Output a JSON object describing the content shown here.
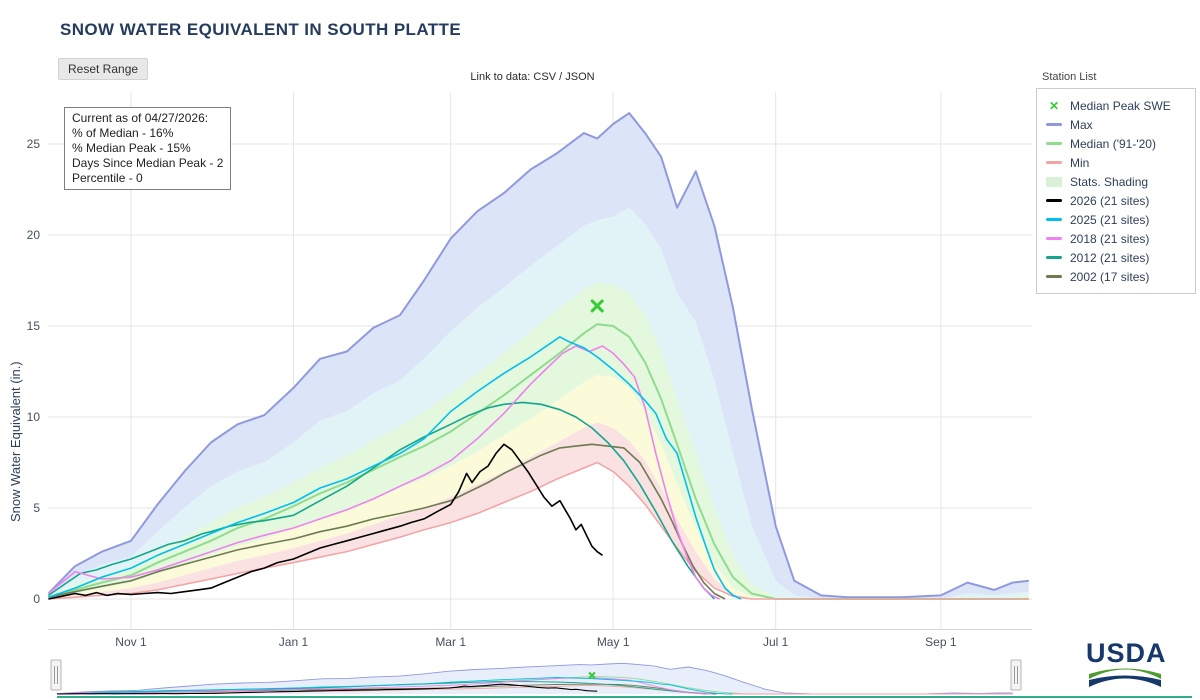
{
  "header": {
    "title": "SNOW WATER EQUIVALENT IN SOUTH PLATTE",
    "reset_button": "Reset Range",
    "data_link": {
      "prefix": "Link to data:",
      "csv": "CSV",
      "separator": "/",
      "json": "JSON"
    }
  },
  "annotation": {
    "lines": [
      "Current as of 04/27/2026:",
      "% of Median - 16%",
      "% Median Peak - 15%",
      "Days Since Median Peak - 2",
      "Percentile - 0"
    ]
  },
  "legend": {
    "station_list_label": "Station List",
    "items": [
      {
        "label": "Median Peak SWE",
        "color": "#33cc33",
        "swatch": "x-marker"
      },
      {
        "label": "Max",
        "color": "#9099e0",
        "swatch": "line"
      },
      {
        "label": "Median ('91-'20)",
        "color": "#8fdc8f",
        "swatch": "line"
      },
      {
        "label": "Min",
        "color": "#f2a3a3",
        "swatch": "line"
      },
      {
        "label": "Stats. Shading",
        "color": "#d9f0d9",
        "swatch": "box"
      },
      {
        "label": "2026 (21 sites)",
        "color": "#000000",
        "swatch": "line"
      },
      {
        "label": "2025 (21 sites)",
        "color": "#00bfee",
        "swatch": "line"
      },
      {
        "label": "2018 (21 sites)",
        "color": "#ee82ee",
        "swatch": "line"
      },
      {
        "label": "2012 (21 sites)",
        "color": "#14a68c",
        "swatch": "line"
      },
      {
        "label": "2002 (17 sites)",
        "color": "#6e7b51",
        "swatch": "line"
      }
    ]
  },
  "footer": {
    "logo_text": "USDA"
  },
  "chart_data": {
    "type": "line",
    "title": "SNOW WATER EQUIVALENT IN SOUTH PLATTE",
    "ylabel": "Snow Water Equivalent (in.)",
    "x_unit": "day of water year (Oct 1 = 0)",
    "xlim": [
      0,
      369
    ],
    "ylim": [
      0,
      27.5
    ],
    "grid": true,
    "legend_position": "right",
    "xticks": [
      {
        "day": 31,
        "label": "Nov 1"
      },
      {
        "day": 92,
        "label": "Jan 1"
      },
      {
        "day": 151,
        "label": "Mar 1"
      },
      {
        "day": 212,
        "label": "May 1"
      },
      {
        "day": 273,
        "label": "Jul 1"
      },
      {
        "day": 335,
        "label": "Sep 1"
      }
    ],
    "yticks": [
      0,
      5,
      10,
      15,
      20,
      25
    ],
    "stat_x": [
      0,
      10,
      20,
      31,
      41,
      51,
      61,
      71,
      81,
      92,
      102,
      112,
      122,
      132,
      141,
      151,
      161,
      171,
      181,
      191,
      201,
      206,
      212,
      218,
      224,
      230,
      236,
      243,
      250,
      257,
      264,
      273,
      280,
      290,
      300,
      320,
      335,
      345,
      355,
      362,
      368
    ],
    "stats": {
      "max": [
        0.3,
        1.8,
        2.6,
        3.2,
        5.2,
        7.0,
        8.6,
        9.6,
        10.1,
        11.6,
        13.2,
        13.6,
        14.9,
        15.6,
        17.5,
        19.8,
        21.3,
        22.3,
        23.6,
        24.5,
        25.6,
        25.3,
        26.1,
        26.7,
        25.6,
        24.3,
        21.5,
        23.5,
        20.5,
        16.0,
        10.5,
        4.0,
        1.0,
        0.2,
        0.1,
        0.1,
        0.2,
        0.9,
        0.5,
        0.9,
        1.0
      ],
      "p90": [
        0.2,
        1.2,
        1.9,
        2.3,
        3.7,
        5.0,
        6.2,
        7.0,
        7.5,
        8.6,
        9.8,
        10.3,
        11.3,
        12.0,
        13.2,
        14.7,
        16.0,
        17.1,
        18.3,
        19.4,
        20.5,
        20.8,
        21.0,
        21.5,
        20.6,
        19.2,
        16.8,
        15.2,
        12.0,
        8.0,
        4.0,
        1.0,
        0.2,
        0,
        0,
        0,
        0,
        0.3,
        0.2,
        0.3,
        0.4
      ],
      "p70": [
        0.15,
        0.8,
        1.3,
        1.7,
        2.6,
        3.4,
        4.2,
        5.0,
        5.6,
        6.4,
        7.2,
        7.9,
        8.7,
        9.5,
        10.3,
        11.3,
        12.4,
        13.5,
        14.7,
        15.9,
        17.0,
        17.4,
        17.3,
        16.8,
        15.6,
        13.6,
        11.0,
        8.0,
        5.0,
        2.4,
        0.8,
        0.1,
        0,
        0,
        0,
        0,
        0,
        0.1,
        0,
        0.1,
        0.15
      ],
      "p30": [
        0.05,
        0.3,
        0.6,
        0.9,
        1.4,
        1.9,
        2.4,
        2.9,
        3.3,
        3.9,
        4.4,
        4.9,
        5.5,
        6.1,
        6.6,
        7.3,
        8.1,
        9.0,
        9.9,
        10.9,
        11.9,
        12.3,
        12.2,
        11.6,
        10.3,
        8.5,
        6.3,
        3.9,
        1.9,
        0.6,
        0.1,
        0,
        0,
        0,
        0,
        0,
        0,
        0,
        0,
        0,
        0
      ],
      "p10": [
        0,
        0.2,
        0.4,
        0.6,
        0.9,
        1.3,
        1.7,
        2.1,
        2.4,
        2.8,
        3.2,
        3.6,
        4.1,
        4.6,
        5.0,
        5.6,
        6.3,
        7.0,
        7.8,
        8.6,
        9.4,
        9.7,
        9.4,
        8.7,
        7.6,
        6.1,
        4.4,
        2.6,
        1.1,
        0.3,
        0,
        0,
        0,
        0,
        0,
        0,
        0,
        0,
        0,
        0,
        0
      ],
      "median": [
        0.1,
        0.5,
        0.9,
        1.3,
        2.0,
        2.6,
        3.2,
        3.9,
        4.4,
        5.1,
        5.8,
        6.4,
        7.1,
        7.8,
        8.4,
        9.2,
        10.2,
        11.2,
        12.3,
        13.4,
        14.6,
        15.1,
        15.0,
        14.4,
        13.0,
        11.0,
        8.5,
        5.5,
        3.0,
        1.2,
        0.3,
        0,
        0,
        0,
        0,
        0,
        0,
        0,
        0,
        0,
        0
      ],
      "min": [
        0,
        0.1,
        0.2,
        0.3,
        0.5,
        0.8,
        1.1,
        1.4,
        1.7,
        2.0,
        2.3,
        2.6,
        3.0,
        3.4,
        3.8,
        4.2,
        4.7,
        5.3,
        5.9,
        6.6,
        7.2,
        7.5,
        7.0,
        6.2,
        5.2,
        4.0,
        2.8,
        1.5,
        0.6,
        0.15,
        0,
        0,
        0,
        0,
        0,
        0,
        0,
        0,
        0,
        0,
        0
      ]
    },
    "bands": [
      {
        "upper": "max",
        "lower": "p90",
        "color": "#dce4f7"
      },
      {
        "upper": "p90",
        "lower": "p70",
        "color": "#e2f3f7"
      },
      {
        "upper": "p70",
        "lower": "p30",
        "color": "#e3f8dd"
      },
      {
        "upper": "p30",
        "lower": "p10",
        "color": "#fbfbda"
      },
      {
        "upper": "p10",
        "lower": "min",
        "color": "#fae2e2"
      }
    ],
    "stat_lines": [
      {
        "key": "max",
        "name": "Max",
        "color": "#9099e0",
        "width": 2
      },
      {
        "key": "median",
        "name": "Median ('91-'20)",
        "color": "#8fdc8f",
        "width": 2
      },
      {
        "key": "min",
        "name": "Min",
        "color": "#f2a3a3",
        "width": 1.5
      }
    ],
    "series": [
      {
        "name": "2002 (17 sites)",
        "color": "#6e7b51",
        "width": 1.6,
        "x": [
          0,
          10,
          20,
          31,
          41,
          51,
          61,
          71,
          81,
          92,
          102,
          112,
          122,
          132,
          141,
          151,
          158,
          165,
          171,
          178,
          185,
          192,
          198,
          204,
          210,
          216,
          222,
          226,
          230,
          234,
          238,
          242,
          246,
          250,
          254
        ],
        "y": [
          0.1,
          0.4,
          0.7,
          1.0,
          1.5,
          1.9,
          2.3,
          2.7,
          3.0,
          3.3,
          3.7,
          4.0,
          4.4,
          4.7,
          5.0,
          5.4,
          5.9,
          6.4,
          6.9,
          7.4,
          7.9,
          8.3,
          8.4,
          8.5,
          8.4,
          8.3,
          7.5,
          6.5,
          5.5,
          4.3,
          3.0,
          1.8,
          0.9,
          0.3,
          0
        ]
      },
      {
        "name": "2012 (21 sites)",
        "color": "#14a68c",
        "width": 1.6,
        "x": [
          0,
          6,
          12,
          18,
          24,
          31,
          38,
          45,
          51,
          58,
          61,
          68,
          75,
          81,
          92,
          102,
          112,
          122,
          132,
          141,
          151,
          158,
          165,
          171,
          178,
          185,
          192,
          198,
          204,
          210,
          216,
          222,
          228,
          234,
          240,
          246,
          250
        ],
        "y": [
          0.2,
          0.8,
          1.4,
          1.6,
          1.9,
          2.2,
          2.6,
          3.0,
          3.2,
          3.6,
          3.7,
          4.0,
          4.2,
          4.3,
          4.6,
          5.4,
          6.2,
          7.2,
          8.2,
          8.9,
          9.6,
          10.1,
          10.5,
          10.7,
          10.8,
          10.7,
          10.4,
          10.0,
          9.4,
          8.6,
          7.6,
          6.3,
          4.8,
          3.2,
          1.8,
          0.6,
          0
        ]
      },
      {
        "name": "2018 (21 sites)",
        "color": "#ee82ee",
        "width": 1.6,
        "x": [
          0,
          10,
          20,
          31,
          41,
          51,
          61,
          71,
          81,
          92,
          102,
          112,
          122,
          132,
          141,
          151,
          161,
          171,
          181,
          188,
          193,
          198,
          203,
          208,
          212,
          216,
          220,
          224,
          228,
          232,
          236,
          240,
          243,
          246,
          249,
          252
        ],
        "y": [
          0.3,
          1.5,
          1.1,
          1.2,
          1.6,
          2.1,
          2.6,
          3.1,
          3.5,
          3.9,
          4.4,
          4.9,
          5.5,
          6.2,
          6.8,
          7.6,
          8.8,
          10.2,
          11.8,
          12.8,
          13.5,
          13.9,
          13.6,
          13.9,
          13.5,
          12.9,
          12.2,
          10.5,
          8.0,
          5.8,
          3.8,
          2.2,
          1.2,
          0.6,
          0.2,
          0
        ]
      },
      {
        "name": "2025 (21 sites)",
        "color": "#00bfee",
        "width": 1.6,
        "x": [
          0,
          10,
          20,
          31,
          41,
          51,
          61,
          71,
          81,
          92,
          102,
          112,
          122,
          132,
          141,
          151,
          161,
          171,
          181,
          188,
          192,
          196,
          201,
          206,
          212,
          218,
          224,
          228,
          232,
          236,
          240,
          243,
          247,
          250,
          254,
          257,
          260
        ],
        "y": [
          0.1,
          0.6,
          1.2,
          1.7,
          2.4,
          3.0,
          3.6,
          4.2,
          4.7,
          5.3,
          6.1,
          6.6,
          7.3,
          8.0,
          8.8,
          10.3,
          11.4,
          12.4,
          13.3,
          14.0,
          14.4,
          14.1,
          13.8,
          13.3,
          12.6,
          11.8,
          10.9,
          10.2,
          8.8,
          8.0,
          6.0,
          4.5,
          2.8,
          1.6,
          0.6,
          0.2,
          0
        ]
      },
      {
        "name": "2026 (21 sites)",
        "color": "#000000",
        "width": 1.6,
        "x": [
          0,
          5,
          10,
          14,
          18,
          22,
          26,
          31,
          36,
          41,
          46,
          51,
          56,
          61,
          66,
          71,
          76,
          81,
          86,
          92,
          97,
          102,
          107,
          112,
          117,
          122,
          127,
          132,
          136,
          141,
          146,
          151,
          154,
          157,
          159,
          162,
          165,
          168,
          171,
          174,
          177,
          180,
          183,
          186,
          189,
          192,
          194,
          196,
          198,
          200,
          202,
          204,
          206,
          208
        ],
        "y": [
          0,
          0.15,
          0.3,
          0.2,
          0.35,
          0.2,
          0.3,
          0.25,
          0.3,
          0.35,
          0.3,
          0.4,
          0.5,
          0.6,
          0.9,
          1.2,
          1.5,
          1.7,
          2.0,
          2.2,
          2.5,
          2.8,
          3.0,
          3.2,
          3.4,
          3.6,
          3.8,
          4.0,
          4.2,
          4.4,
          4.8,
          5.2,
          5.9,
          6.9,
          6.4,
          7.0,
          7.3,
          8.0,
          8.5,
          8.2,
          7.6,
          7.0,
          6.3,
          5.6,
          5.1,
          5.4,
          4.9,
          4.4,
          3.8,
          4.1,
          3.5,
          2.9,
          2.6,
          2.4
        ]
      }
    ],
    "median_peak_marker": {
      "label": "Median Peak SWE",
      "day": 206,
      "value": 16.1,
      "color": "#33cc33"
    }
  }
}
